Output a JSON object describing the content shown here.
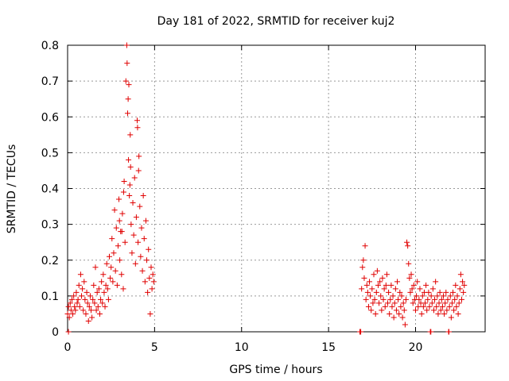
{
  "chart_data": {
    "type": "scatter",
    "title": "Day 181 of 2022, SRMTID for receiver kuj2",
    "xlabel": "GPS time / hours",
    "ylabel": "SRMTID / TECUs",
    "xlim": [
      0,
      24
    ],
    "ylim": [
      0,
      0.8
    ],
    "xticks": [
      0,
      5,
      10,
      15,
      20
    ],
    "yticks": [
      0,
      0.1,
      0.2,
      0.3,
      0.4,
      0.5,
      0.6,
      0.7,
      0.8
    ],
    "xtick_labels": [
      "0",
      "5",
      "10",
      "15",
      "20"
    ],
    "ytick_labels": [
      "0",
      "0.1",
      "0.2",
      "0.3",
      "0.4",
      "0.5",
      "0.6",
      "0.7",
      "0.8"
    ],
    "grid": true,
    "marker": "+",
    "color": "#e00000",
    "series": [
      {
        "name": "SRMTID",
        "points": [
          [
            0.0,
            0.05
          ],
          [
            0.05,
            0.07
          ],
          [
            0.1,
            0.04
          ],
          [
            0.15,
            0.08
          ],
          [
            0.2,
            0.06
          ],
          [
            0.25,
            0.09
          ],
          [
            0.3,
            0.05
          ],
          [
            0.35,
            0.1
          ],
          [
            0.4,
            0.07
          ],
          [
            0.45,
            0.06
          ],
          [
            0.5,
            0.11
          ],
          [
            0.55,
            0.08
          ],
          [
            0.6,
            0.09
          ],
          [
            0.65,
            0.13
          ],
          [
            0.7,
            0.07
          ],
          [
            0.75,
            0.16
          ],
          [
            0.8,
            0.1
          ],
          [
            0.85,
            0.12
          ],
          [
            0.9,
            0.06
          ],
          [
            0.95,
            0.14
          ],
          [
            1.0,
            0.09
          ],
          [
            1.05,
            0.05
          ],
          [
            1.1,
            0.11
          ],
          [
            1.15,
            0.08
          ],
          [
            1.2,
            0.03
          ],
          [
            1.25,
            0.07
          ],
          [
            1.3,
            0.1
          ],
          [
            1.35,
            0.06
          ],
          [
            1.4,
            0.04
          ],
          [
            1.45,
            0.09
          ],
          [
            1.5,
            0.13
          ],
          [
            1.55,
            0.08
          ],
          [
            1.6,
            0.18
          ],
          [
            1.65,
            0.06
          ],
          [
            1.7,
            0.11
          ],
          [
            1.75,
            0.07
          ],
          [
            1.8,
            0.12
          ],
          [
            1.85,
            0.05
          ],
          [
            1.9,
            0.09
          ],
          [
            1.95,
            0.14
          ],
          [
            2.0,
            0.08
          ],
          [
            2.05,
            0.16
          ],
          [
            2.1,
            0.11
          ],
          [
            2.15,
            0.07
          ],
          [
            2.2,
            0.13
          ],
          [
            2.25,
            0.19
          ],
          [
            2.3,
            0.12
          ],
          [
            2.35,
            0.09
          ],
          [
            2.4,
            0.21
          ],
          [
            2.45,
            0.15
          ],
          [
            2.5,
            0.18
          ],
          [
            2.55,
            0.26
          ],
          [
            2.6,
            0.14
          ],
          [
            2.65,
            0.22
          ],
          [
            2.7,
            0.34
          ],
          [
            2.75,
            0.17
          ],
          [
            2.8,
            0.29
          ],
          [
            2.85,
            0.13
          ],
          [
            2.9,
            0.24
          ],
          [
            2.95,
            0.37
          ],
          [
            3.0,
            0.2
          ],
          [
            3.05,
            0.28
          ],
          [
            3.1,
            0.16
          ],
          [
            3.15,
            0.33
          ],
          [
            3.2,
            0.12
          ],
          [
            3.25,
            0.42
          ],
          [
            3.3,
            0.25
          ],
          [
            3.35,
            0.7
          ],
          [
            3.4,
            0.8
          ],
          [
            3.45,
            0.61
          ],
          [
            3.5,
            0.48
          ],
          [
            3.55,
            0.38
          ],
          [
            3.6,
            0.55
          ],
          [
            3.65,
            0.3
          ],
          [
            3.7,
            0.22
          ],
          [
            3.75,
            0.36
          ],
          [
            3.8,
            0.27
          ],
          [
            3.85,
            0.43
          ],
          [
            3.9,
            0.19
          ],
          [
            3.95,
            0.32
          ],
          [
            4.0,
            0.59
          ],
          [
            4.05,
            0.25
          ],
          [
            4.1,
            0.49
          ],
          [
            4.15,
            0.35
          ],
          [
            4.2,
            0.21
          ],
          [
            4.25,
            0.29
          ],
          [
            4.3,
            0.17
          ],
          [
            4.35,
            0.38
          ],
          [
            4.4,
            0.26
          ],
          [
            4.45,
            0.14
          ],
          [
            4.5,
            0.31
          ],
          [
            4.55,
            0.2
          ],
          [
            4.6,
            0.11
          ],
          [
            4.65,
            0.23
          ],
          [
            4.7,
            0.15
          ],
          [
            4.75,
            0.05
          ],
          [
            4.8,
            0.18
          ],
          [
            4.85,
            0.12
          ],
          [
            4.9,
            0.16
          ],
          [
            4.95,
            0.14
          ],
          [
            3.48,
            0.65
          ],
          [
            3.52,
            0.69
          ],
          [
            3.42,
            0.75
          ],
          [
            3.58,
            0.41
          ],
          [
            3.62,
            0.46
          ],
          [
            4.02,
            0.57
          ],
          [
            4.08,
            0.45
          ],
          [
            3.22,
            0.39
          ],
          [
            2.98,
            0.31
          ],
          [
            3.12,
            0.28
          ],
          [
            16.8,
            0.0
          ],
          [
            16.9,
            0.12
          ],
          [
            16.95,
            0.18
          ],
          [
            17.0,
            0.2
          ],
          [
            17.05,
            0.15
          ],
          [
            17.1,
            0.24
          ],
          [
            17.15,
            0.09
          ],
          [
            17.2,
            0.13
          ],
          [
            17.25,
            0.11
          ],
          [
            17.3,
            0.07
          ],
          [
            17.35,
            0.14
          ],
          [
            17.4,
            0.1
          ],
          [
            17.45,
            0.06
          ],
          [
            17.5,
            0.12
          ],
          [
            17.55,
            0.08
          ],
          [
            17.6,
            0.16
          ],
          [
            17.65,
            0.09
          ],
          [
            17.7,
            0.05
          ],
          [
            17.75,
            0.11
          ],
          [
            17.8,
            0.17
          ],
          [
            17.85,
            0.13
          ],
          [
            17.9,
            0.08
          ],
          [
            17.95,
            0.14
          ],
          [
            18.0,
            0.1
          ],
          [
            18.05,
            0.06
          ],
          [
            18.1,
            0.15
          ],
          [
            18.15,
            0.09
          ],
          [
            18.2,
            0.12
          ],
          [
            18.25,
            0.07
          ],
          [
            18.3,
            0.13
          ],
          [
            18.35,
            0.16
          ],
          [
            18.4,
            0.08
          ],
          [
            18.45,
            0.11
          ],
          [
            18.5,
            0.05
          ],
          [
            18.55,
            0.09
          ],
          [
            18.6,
            0.13
          ],
          [
            18.65,
            0.07
          ],
          [
            18.7,
            0.1
          ],
          [
            18.75,
            0.04
          ],
          [
            18.8,
            0.08
          ],
          [
            18.85,
            0.12
          ],
          [
            18.9,
            0.06
          ],
          [
            18.95,
            0.14
          ],
          [
            19.0,
            0.09
          ],
          [
            19.05,
            0.05
          ],
          [
            19.1,
            0.11
          ],
          [
            19.15,
            0.07
          ],
          [
            19.2,
            0.1
          ],
          [
            19.25,
            0.04
          ],
          [
            19.3,
            0.08
          ],
          [
            19.35,
            0.06
          ],
          [
            19.4,
            0.02
          ],
          [
            19.45,
            0.09
          ],
          [
            19.5,
            0.25
          ],
          [
            19.55,
            0.24
          ],
          [
            19.6,
            0.19
          ],
          [
            19.65,
            0.15
          ],
          [
            19.7,
            0.11
          ],
          [
            19.75,
            0.16
          ],
          [
            19.8,
            0.12
          ],
          [
            19.85,
            0.08
          ],
          [
            19.9,
            0.13
          ],
          [
            19.95,
            0.09
          ],
          [
            20.0,
            0.06
          ],
          [
            20.05,
            0.1
          ],
          [
            20.1,
            0.14
          ],
          [
            20.15,
            0.07
          ],
          [
            20.2,
            0.09
          ],
          [
            20.25,
            0.12
          ],
          [
            20.3,
            0.08
          ],
          [
            20.35,
            0.05
          ],
          [
            20.4,
            0.1
          ],
          [
            20.45,
            0.07
          ],
          [
            20.5,
            0.11
          ],
          [
            20.55,
            0.08
          ],
          [
            20.6,
            0.13
          ],
          [
            20.65,
            0.06
          ],
          [
            20.7,
            0.09
          ],
          [
            20.75,
            0.11
          ],
          [
            20.8,
            0.07
          ],
          [
            20.85,
            0.0
          ],
          [
            20.9,
            0.1
          ],
          [
            20.95,
            0.08
          ],
          [
            21.0,
            0.12
          ],
          [
            21.05,
            0.06
          ],
          [
            21.1,
            0.09
          ],
          [
            21.15,
            0.14
          ],
          [
            21.2,
            0.07
          ],
          [
            21.25,
            0.1
          ],
          [
            21.3,
            0.05
          ],
          [
            21.35,
            0.08
          ],
          [
            21.4,
            0.11
          ],
          [
            21.45,
            0.06
          ],
          [
            21.5,
            0.09
          ],
          [
            21.55,
            0.07
          ],
          [
            21.6,
            0.1
          ],
          [
            21.65,
            0.05
          ],
          [
            21.7,
            0.08
          ],
          [
            21.75,
            0.11
          ],
          [
            21.8,
            0.06
          ],
          [
            21.85,
            0.09
          ],
          [
            21.9,
            0.0
          ],
          [
            21.95,
            0.07
          ],
          [
            22.0,
            0.1
          ],
          [
            22.05,
            0.04
          ],
          [
            22.1,
            0.08
          ],
          [
            22.15,
            0.11
          ],
          [
            22.2,
            0.06
          ],
          [
            22.25,
            0.09
          ],
          [
            22.3,
            0.13
          ],
          [
            22.35,
            0.07
          ],
          [
            22.4,
            0.1
          ],
          [
            22.45,
            0.05
          ],
          [
            22.5,
            0.08
          ],
          [
            22.55,
            0.12
          ],
          [
            22.6,
            0.16
          ],
          [
            22.65,
            0.09
          ],
          [
            22.7,
            0.14
          ],
          [
            22.75,
            0.11
          ],
          [
            22.8,
            0.13
          ],
          [
            0.05,
            0.0
          ],
          [
            16.85,
            0.0
          ],
          [
            20.88,
            0.0
          ],
          [
            21.92,
            0.0
          ]
        ]
      }
    ]
  }
}
